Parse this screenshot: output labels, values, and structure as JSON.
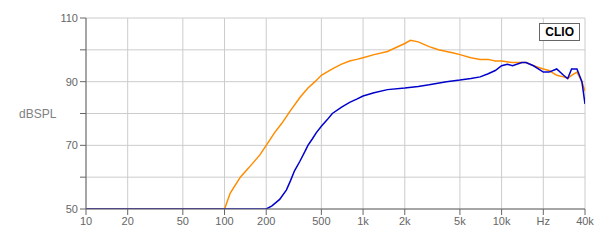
{
  "chart_data": {
    "type": "line",
    "title": "CLIO",
    "ylabel": "dBSPL",
    "log": "x",
    "grid": true,
    "xlim": [
      10,
      40000
    ],
    "ylim": [
      50,
      110
    ],
    "xticks": [
      10,
      20,
      50,
      100,
      200,
      500,
      {
        "value": 1000,
        "label": "1k"
      },
      {
        "value": 2000,
        "label": "2k"
      },
      {
        "value": 5000,
        "label": "5k"
      },
      {
        "value": 10000,
        "label": "10k"
      },
      {
        "value": 20000,
        "label": "Hz"
      },
      {
        "value": 40000,
        "label": "40k"
      }
    ],
    "yticks": [
      50,
      {
        "value": 60,
        "label": ""
      },
      70,
      {
        "value": 80,
        "label": ""
      },
      90,
      {
        "value": 100,
        "label": ""
      },
      110
    ],
    "series": [
      {
        "color": "#FF8C00",
        "x": [
          10,
          60,
          80,
          95,
          100,
          110,
          130,
          150,
          180,
          200,
          230,
          260,
          300,
          350,
          400,
          450,
          500,
          600,
          700,
          800,
          900,
          1000,
          1200,
          1500,
          2000,
          2200,
          2500,
          3000,
          3500,
          4000,
          4500,
          5000,
          6000,
          7000,
          8000,
          9000,
          10000,
          12000,
          14000,
          15000,
          17000,
          20000,
          22000,
          25000,
          28000,
          30000,
          32000,
          35000,
          38000,
          40000
        ],
        "values": [
          50,
          50,
          50,
          50,
          50,
          55,
          60,
          63,
          67,
          70,
          74,
          77,
          81,
          85,
          88,
          90,
          92,
          94,
          95.5,
          96.5,
          97,
          97.5,
          98.5,
          99.5,
          102,
          103,
          102.5,
          101,
          100,
          99.5,
          99,
          98.5,
          97.5,
          97,
          97,
          96.5,
          96.5,
          96,
          96,
          96,
          95,
          94,
          93.5,
          92,
          91.5,
          91,
          92,
          93,
          90,
          87
        ]
      },
      {
        "color": "#0000CD",
        "x": [
          10,
          200,
          220,
          250,
          280,
          300,
          320,
          350,
          380,
          400,
          430,
          460,
          500,
          550,
          600,
          700,
          800,
          900,
          1000,
          1200,
          1500,
          2000,
          2500,
          3000,
          4000,
          5000,
          6000,
          7000,
          8000,
          9000,
          10000,
          11000,
          12000,
          14000,
          15000,
          17000,
          20000,
          22000,
          25000,
          28000,
          30000,
          32000,
          35000,
          38000,
          40000
        ],
        "values": [
          50,
          50,
          51,
          53,
          56,
          59,
          62,
          65,
          68,
          70,
          72,
          74,
          76,
          78,
          80,
          82,
          83.5,
          84.5,
          85.5,
          86.5,
          87.5,
          88,
          88.5,
          89,
          90,
          90.5,
          91,
          91.5,
          92.5,
          93.5,
          95,
          95.5,
          95,
          96,
          96,
          95,
          93,
          93,
          94,
          92,
          91,
          94,
          94,
          90,
          83
        ]
      }
    ]
  }
}
